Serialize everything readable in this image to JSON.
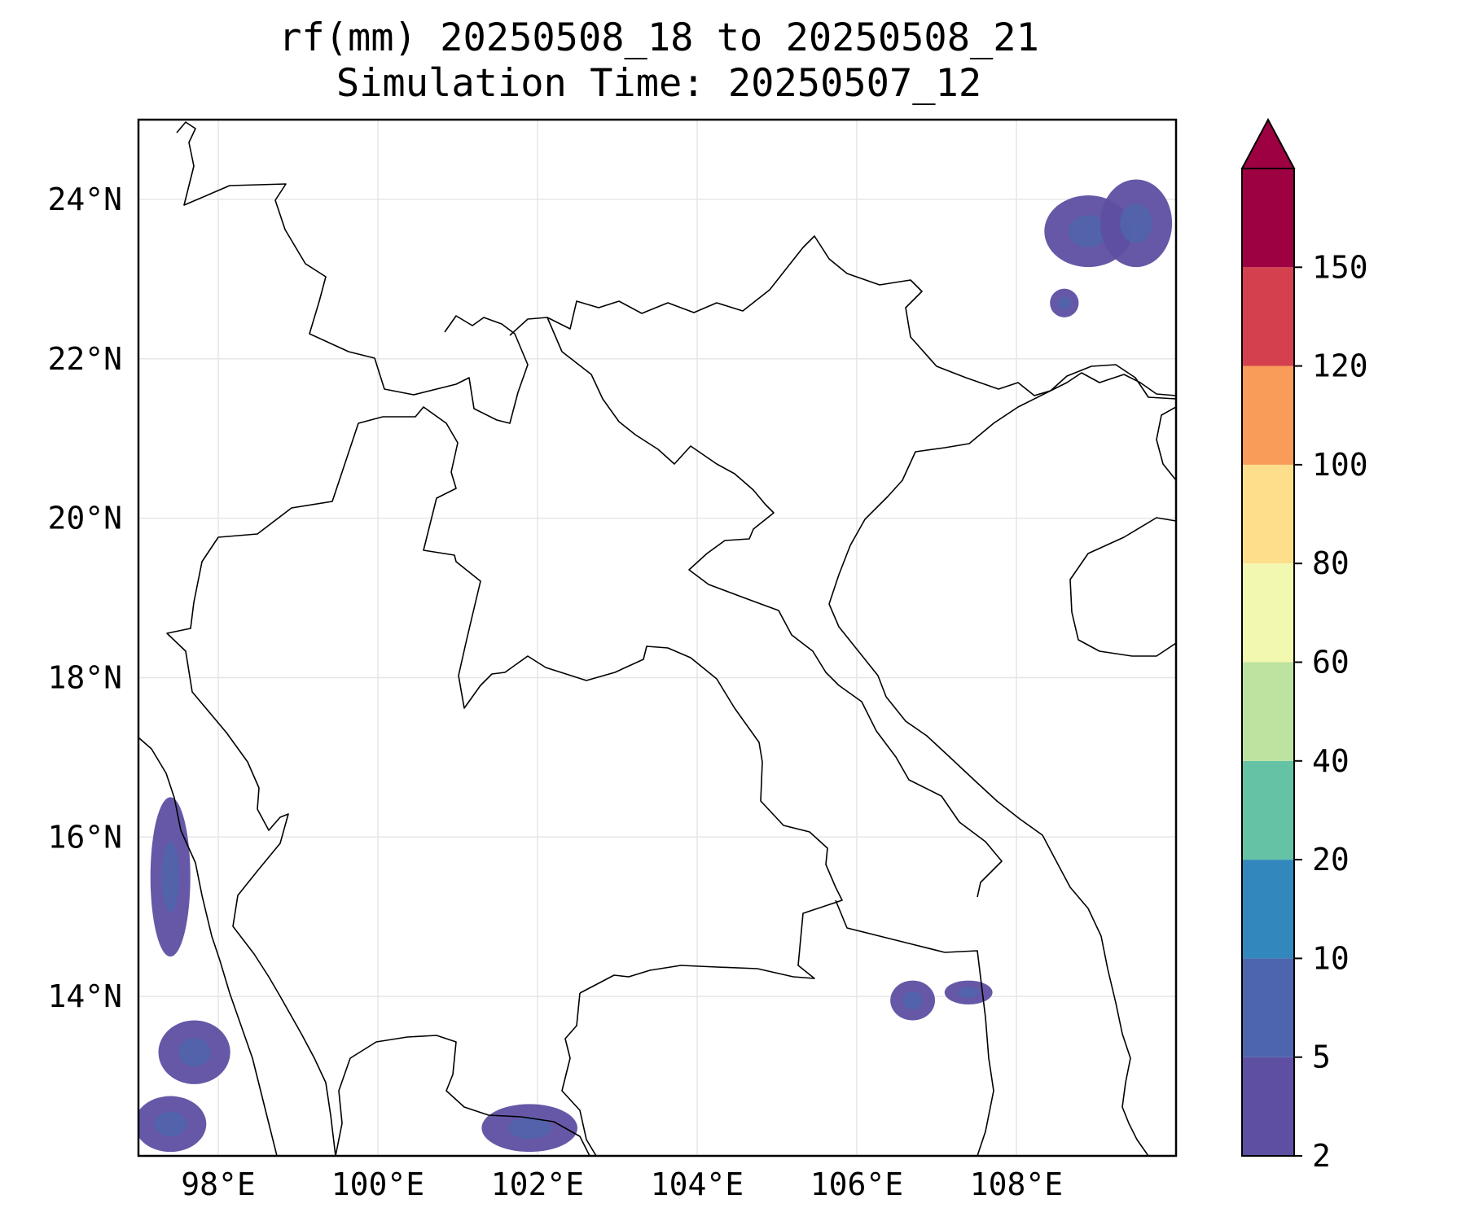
{
  "title_line1": "rf(mm) 20250508_18 to 20250508_21",
  "title_line2": "Simulation Time: 20250507_12",
  "map": {
    "lon_range": [
      97.0,
      110.0
    ],
    "lat_range": [
      12.0,
      25.0
    ],
    "lon_ticks": [
      {
        "value": 98,
        "label": "98°E"
      },
      {
        "value": 100,
        "label": "100°E"
      },
      {
        "value": 102,
        "label": "102°E"
      },
      {
        "value": 104,
        "label": "104°E"
      },
      {
        "value": 106,
        "label": "106°E"
      },
      {
        "value": 108,
        "label": "108°E"
      }
    ],
    "lat_ticks": [
      {
        "value": 24,
        "label": "24°N"
      },
      {
        "value": 22,
        "label": "22°N"
      },
      {
        "value": 20,
        "label": "20°N"
      },
      {
        "value": 18,
        "label": "18°N"
      },
      {
        "value": 16,
        "label": "16°N"
      },
      {
        "value": 14,
        "label": "14°N"
      }
    ],
    "gridlines": true,
    "rain_areas": [
      {
        "level": "2-5",
        "lon": 108.9,
        "lat": 23.6,
        "rlon": 0.55,
        "rlat": 0.45
      },
      {
        "level": "2-5",
        "lon": 109.5,
        "lat": 23.7,
        "rlon": 0.45,
        "rlat": 0.55
      },
      {
        "level": "2-5",
        "lon": 108.6,
        "lat": 22.7,
        "rlon": 0.18,
        "rlat": 0.18
      },
      {
        "level": "2-5",
        "lon": 97.4,
        "lat": 15.5,
        "rlon": 0.25,
        "rlat": 1.0
      },
      {
        "level": "2-5",
        "lon": 97.7,
        "lat": 13.3,
        "rlon": 0.45,
        "rlat": 0.4
      },
      {
        "level": "2-5",
        "lon": 97.4,
        "lat": 12.4,
        "rlon": 0.45,
        "rlat": 0.35
      },
      {
        "level": "2-5",
        "lon": 101.9,
        "lat": 12.35,
        "rlon": 0.6,
        "rlat": 0.3
      },
      {
        "level": "2-5",
        "lon": 106.7,
        "lat": 13.95,
        "rlon": 0.28,
        "rlat": 0.25
      },
      {
        "level": "2-5",
        "lon": 107.4,
        "lat": 14.05,
        "rlon": 0.3,
        "rlat": 0.15
      }
    ]
  },
  "colorbar": {
    "boundaries": [
      2,
      5,
      10,
      20,
      40,
      60,
      80,
      100,
      120,
      150
    ],
    "labels": [
      "2",
      "5",
      "10",
      "20",
      "40",
      "60",
      "80",
      "100",
      "120",
      "150"
    ],
    "colors": [
      "#5e4fa2",
      "#4d65ad",
      "#3288bd",
      "#66c2a5",
      "#bde3a0",
      "#f2f8b0",
      "#fddf8b",
      "#f99c5a",
      "#d4404e",
      "#9e0142"
    ],
    "extend": "max"
  }
}
